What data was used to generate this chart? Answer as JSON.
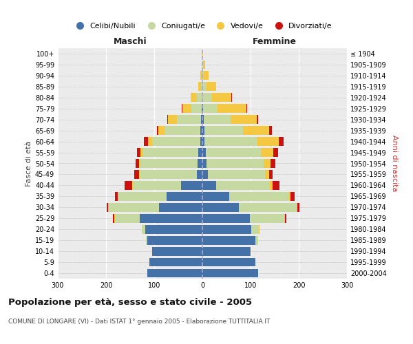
{
  "age_groups": [
    "0-4",
    "5-9",
    "10-14",
    "15-19",
    "20-24",
    "25-29",
    "30-34",
    "35-39",
    "40-44",
    "45-49",
    "50-54",
    "55-59",
    "60-64",
    "65-69",
    "70-74",
    "75-79",
    "80-84",
    "85-89",
    "90-94",
    "95-99",
    "100+"
  ],
  "birth_years": [
    "2000-2004",
    "1995-1999",
    "1990-1994",
    "1985-1989",
    "1980-1984",
    "1975-1979",
    "1970-1974",
    "1965-1969",
    "1960-1964",
    "1955-1959",
    "1950-1954",
    "1945-1949",
    "1940-1944",
    "1935-1939",
    "1930-1934",
    "1925-1929",
    "1920-1924",
    "1915-1919",
    "1910-1914",
    "1905-1909",
    "≤ 1904"
  ],
  "maschi": {
    "celibi": [
      115,
      110,
      105,
      115,
      118,
      130,
      90,
      75,
      45,
      12,
      10,
      8,
      5,
      4,
      3,
      1,
      0,
      0,
      0,
      0,
      0
    ],
    "coniugati": [
      0,
      0,
      0,
      2,
      8,
      52,
      105,
      100,
      100,
      118,
      118,
      115,
      100,
      75,
      50,
      22,
      12,
      3,
      2,
      0,
      0
    ],
    "vedovi": [
      0,
      0,
      0,
      0,
      0,
      1,
      1,
      1,
      1,
      2,
      3,
      5,
      8,
      12,
      18,
      18,
      12,
      5,
      2,
      0,
      0
    ],
    "divorziati": [
      0,
      0,
      0,
      0,
      0,
      2,
      3,
      5,
      15,
      10,
      8,
      8,
      8,
      3,
      2,
      2,
      0,
      0,
      0,
      0,
      0
    ]
  },
  "femmine": {
    "nubili": [
      115,
      110,
      100,
      110,
      102,
      98,
      75,
      55,
      28,
      12,
      9,
      7,
      4,
      4,
      3,
      1,
      0,
      0,
      0,
      0,
      0
    ],
    "coniugate": [
      0,
      0,
      0,
      5,
      15,
      72,
      120,
      125,
      112,
      118,
      118,
      115,
      110,
      80,
      55,
      30,
      20,
      8,
      3,
      2,
      0
    ],
    "vedove": [
      0,
      0,
      0,
      0,
      1,
      1,
      2,
      3,
      5,
      8,
      15,
      25,
      45,
      55,
      55,
      60,
      40,
      20,
      10,
      3,
      1
    ],
    "divorziate": [
      0,
      0,
      0,
      0,
      1,
      3,
      5,
      8,
      15,
      8,
      10,
      10,
      10,
      5,
      3,
      2,
      2,
      0,
      0,
      0,
      0
    ]
  },
  "colors": {
    "celibi": "#4472a8",
    "coniugati": "#c5d9a0",
    "vedovi": "#f5c842",
    "divorziati": "#cc1111"
  },
  "xlim": 300,
  "title": "Popolazione per età, sesso e stato civile - 2005",
  "subtitle": "COMUNE DI LONGARE (VI) - Dati ISTAT 1° gennaio 2005 - Elaborazione TUTTITALIA.IT",
  "ylabel_left": "Fasce di età",
  "ylabel_right": "Anni di nascita",
  "xlabel_maschi": "Maschi",
  "xlabel_femmine": "Femmine",
  "legend_labels": [
    "Celibi/Nubili",
    "Coniugati/e",
    "Vedovi/e",
    "Divorziati/e"
  ],
  "bg_color": "#ffffff",
  "plot_bg": "#ebebeb"
}
